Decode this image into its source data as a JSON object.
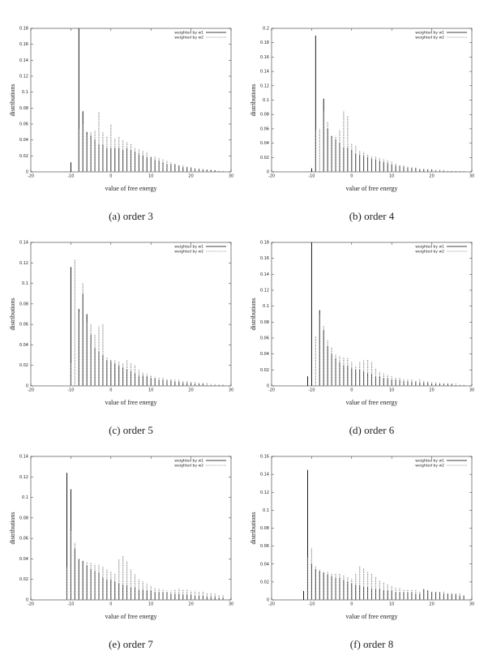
{
  "chart_data": [
    {
      "type": "bar",
      "caption": "(a) order 3",
      "xlabel": "value of free energy",
      "ylabel": "distributions",
      "legend": "upper right",
      "x": [
        -12,
        -11,
        -10,
        -9,
        -8,
        -7,
        -6,
        -5,
        -4,
        -3,
        -2,
        -1,
        0,
        1,
        2,
        3,
        4,
        5,
        6,
        7,
        8,
        9,
        10,
        11,
        12,
        13,
        14,
        15,
        16,
        17,
        18,
        19,
        20,
        21,
        22,
        23,
        24,
        25,
        26,
        27,
        28
      ],
      "xlim": [
        -20,
        30
      ],
      "xticks": [
        -20,
        -10,
        0,
        10,
        20,
        30
      ],
      "ylim": [
        0,
        0.18
      ],
      "yticks": [
        0,
        0.02,
        0.04,
        0.06,
        0.08,
        0.1,
        0.12,
        0.14,
        0.16,
        0.18
      ],
      "series": [
        {
          "name": "weighted by w1",
          "color": "#000000",
          "style": "solid",
          "values": [
            0,
            0,
            0.012,
            0,
            0.18,
            0.076,
            0.05,
            0.046,
            0.04,
            0.035,
            0.034,
            0.03,
            0.03,
            0.03,
            0.03,
            0.028,
            0.03,
            0.028,
            0.025,
            0.022,
            0.02,
            0.018,
            0.018,
            0.015,
            0.014,
            0.012,
            0.01,
            0.01,
            0.009,
            0.008,
            0.006,
            0.006,
            0.005,
            0.004,
            0.004,
            0.003,
            0.003,
            0.002,
            0.002,
            0.001,
            0.001
          ]
        },
        {
          "name": "weighted by w2",
          "color": "#888888",
          "style": "dashed",
          "values": [
            0,
            0,
            0,
            0,
            0.054,
            0.06,
            0.046,
            0.05,
            0.052,
            0.076,
            0.05,
            0.045,
            0.06,
            0.042,
            0.044,
            0.04,
            0.038,
            0.035,
            0.03,
            0.028,
            0.027,
            0.025,
            0.02,
            0.02,
            0.018,
            0.016,
            0.014,
            0.012,
            0.01,
            0.009,
            0.008,
            0.007,
            0.006,
            0.005,
            0.004,
            0.004,
            0.003,
            0.003,
            0.002,
            0.002,
            0.001
          ]
        }
      ]
    },
    {
      "type": "bar",
      "caption": "(b) order 4",
      "xlabel": "value of free energy",
      "ylabel": "distributions",
      "legend": "upper right",
      "x": [
        -12,
        -11,
        -10,
        -9,
        -8,
        -7,
        -6,
        -5,
        -4,
        -3,
        -2,
        -1,
        0,
        1,
        2,
        3,
        4,
        5,
        6,
        7,
        8,
        9,
        10,
        11,
        12,
        13,
        14,
        15,
        16,
        17,
        18,
        19,
        20,
        21,
        22,
        23,
        24,
        25,
        26,
        27,
        28
      ],
      "xlim": [
        -20,
        30
      ],
      "xticks": [
        -20,
        -10,
        0,
        10,
        20,
        30
      ],
      "ylim": [
        0,
        0.2
      ],
      "yticks": [
        0,
        0.02,
        0.04,
        0.06,
        0.08,
        0.1,
        0.12,
        0.14,
        0.16,
        0.18,
        0.2
      ],
      "series": [
        {
          "name": "weighted by w1",
          "color": "#000000",
          "style": "solid",
          "values": [
            0,
            0,
            0.005,
            0.19,
            0,
            0.102,
            0.06,
            0.05,
            0.045,
            0.04,
            0.034,
            0.034,
            0.03,
            0.025,
            0.024,
            0.022,
            0.02,
            0.018,
            0.017,
            0.015,
            0.014,
            0.012,
            0.01,
            0.009,
            0.008,
            0.007,
            0.006,
            0.005,
            0.005,
            0.004,
            0.004,
            0.003,
            0.003,
            0.002,
            0.002,
            0.002,
            0.001,
            0.001,
            0.001,
            0.001,
            0.001
          ]
        },
        {
          "name": "weighted by w2",
          "color": "#888888",
          "style": "dashed",
          "values": [
            0,
            0,
            0,
            0.058,
            0.06,
            0.085,
            0.07,
            0.048,
            0.05,
            0.058,
            0.085,
            0.078,
            0.04,
            0.036,
            0.03,
            0.028,
            0.025,
            0.022,
            0.022,
            0.02,
            0.018,
            0.016,
            0.014,
            0.012,
            0.01,
            0.009,
            0.008,
            0.007,
            0.006,
            0.005,
            0.005,
            0.004,
            0.004,
            0.003,
            0.003,
            0.002,
            0.002,
            0.002,
            0.001,
            0.001,
            0.001
          ]
        }
      ]
    },
    {
      "type": "bar",
      "caption": "(c) order 5",
      "xlabel": "value of free energy",
      "ylabel": "distributions",
      "legend": "upper right",
      "x": [
        -12,
        -11,
        -10,
        -9,
        -8,
        -7,
        -6,
        -5,
        -4,
        -3,
        -2,
        -1,
        0,
        1,
        2,
        3,
        4,
        5,
        6,
        7,
        8,
        9,
        10,
        11,
        12,
        13,
        14,
        15,
        16,
        17,
        18,
        19,
        20,
        21,
        22,
        23,
        24,
        25,
        26,
        27,
        28
      ],
      "xlim": [
        -20,
        30
      ],
      "xticks": [
        -20,
        -10,
        0,
        10,
        20,
        30
      ],
      "ylim": [
        0,
        0.14
      ],
      "yticks": [
        0,
        0.02,
        0.04,
        0.06,
        0.08,
        0.1,
        0.12,
        0.14
      ],
      "series": [
        {
          "name": "weighted by w1",
          "color": "#000000",
          "style": "solid",
          "values": [
            0,
            0,
            0.116,
            0,
            0.075,
            0.09,
            0.07,
            0.05,
            0.037,
            0.034,
            0.03,
            0.025,
            0.024,
            0.022,
            0.02,
            0.018,
            0.016,
            0.014,
            0.012,
            0.01,
            0.01,
            0.009,
            0.008,
            0.007,
            0.006,
            0.006,
            0.005,
            0.005,
            0.004,
            0.004,
            0.003,
            0.003,
            0.003,
            0.002,
            0.002,
            0.002,
            0.001,
            0.001,
            0.001,
            0.001,
            0.001
          ]
        },
        {
          "name": "weighted by w2",
          "color": "#888888",
          "style": "dashed",
          "values": [
            0,
            0,
            0.022,
            0.123,
            0.072,
            0.1,
            0.062,
            0.06,
            0.05,
            0.058,
            0.06,
            0.028,
            0.026,
            0.025,
            0.024,
            0.022,
            0.025,
            0.022,
            0.02,
            0.016,
            0.013,
            0.012,
            0.01,
            0.009,
            0.008,
            0.008,
            0.007,
            0.007,
            0.006,
            0.006,
            0.005,
            0.005,
            0.004,
            0.004,
            0.003,
            0.003,
            0.003,
            0.002,
            0.002,
            0.001,
            0.001
          ]
        }
      ]
    },
    {
      "type": "bar",
      "caption": "(d) order 6",
      "xlabel": "value of free energy",
      "ylabel": "distributions",
      "legend": "upper right",
      "x": [
        -12,
        -11,
        -10,
        -9,
        -8,
        -7,
        -6,
        -5,
        -4,
        -3,
        -2,
        -1,
        0,
        1,
        2,
        3,
        4,
        5,
        6,
        7,
        8,
        9,
        10,
        11,
        12,
        13,
        14,
        15,
        16,
        17,
        18,
        19,
        20,
        21,
        22,
        23,
        24,
        25,
        26,
        27,
        28
      ],
      "xlim": [
        -20,
        30
      ],
      "xticks": [
        -20,
        -10,
        0,
        10,
        20,
        30
      ],
      "ylim": [
        0,
        0.18
      ],
      "yticks": [
        0,
        0.02,
        0.04,
        0.06,
        0.08,
        0.1,
        0.12,
        0.14,
        0.16,
        0.18
      ],
      "series": [
        {
          "name": "weighted by w1",
          "color": "#000000",
          "style": "solid",
          "values": [
            0,
            0.012,
            0.18,
            0,
            0.095,
            0.07,
            0.05,
            0.04,
            0.035,
            0.03,
            0.026,
            0.025,
            0.022,
            0.02,
            0.02,
            0.018,
            0.016,
            0.015,
            0.012,
            0.012,
            0.01,
            0.009,
            0.008,
            0.008,
            0.007,
            0.006,
            0.006,
            0.005,
            0.005,
            0.004,
            0.004,
            0.004,
            0.003,
            0.003,
            0.003,
            0.002,
            0.002,
            0.002,
            0.001,
            0.001,
            0.001
          ]
        },
        {
          "name": "weighted by w2",
          "color": "#888888",
          "style": "dashed",
          "values": [
            0,
            0,
            0,
            0.062,
            0.09,
            0.075,
            0.058,
            0.048,
            0.04,
            0.038,
            0.036,
            0.035,
            0.03,
            0.025,
            0.03,
            0.032,
            0.033,
            0.03,
            0.022,
            0.018,
            0.016,
            0.014,
            0.012,
            0.01,
            0.01,
            0.009,
            0.008,
            0.008,
            0.007,
            0.009,
            0.007,
            0.006,
            0.005,
            0.005,
            0.004,
            0.004,
            0.004,
            0.003,
            0.003,
            0.002,
            0.002
          ]
        }
      ]
    },
    {
      "type": "bar",
      "caption": "(e) order 7",
      "xlabel": "value of free energy",
      "ylabel": "distributions",
      "legend": "upper right",
      "x": [
        -12,
        -11,
        -10,
        -9,
        -8,
        -7,
        -6,
        -5,
        -4,
        -3,
        -2,
        -1,
        0,
        1,
        2,
        3,
        4,
        5,
        6,
        7,
        8,
        9,
        10,
        11,
        12,
        13,
        14,
        15,
        16,
        17,
        18,
        19,
        20,
        21,
        22,
        23,
        24,
        25,
        26,
        27,
        28
      ],
      "xlim": [
        -20,
        30
      ],
      "xticks": [
        -20,
        -10,
        0,
        10,
        20,
        30
      ],
      "ylim": [
        0,
        0.14
      ],
      "yticks": [
        0,
        0.02,
        0.04,
        0.06,
        0.08,
        0.1,
        0.12,
        0.14
      ],
      "series": [
        {
          "name": "weighted by w1",
          "color": "#000000",
          "style": "solid",
          "values": [
            0,
            0.124,
            0.108,
            0.05,
            0.04,
            0.038,
            0.034,
            0.03,
            0.028,
            0.026,
            0.022,
            0.02,
            0.02,
            0.018,
            0.016,
            0.015,
            0.014,
            0.012,
            0.012,
            0.01,
            0.01,
            0.009,
            0.009,
            0.008,
            0.008,
            0.007,
            0.007,
            0.006,
            0.006,
            0.006,
            0.005,
            0.005,
            0.005,
            0.004,
            0.004,
            0.004,
            0.003,
            0.003,
            0.003,
            0.002,
            0.002
          ]
        },
        {
          "name": "weighted by w2",
          "color": "#888888",
          "style": "dashed",
          "values": [
            0,
            0.032,
            0.067,
            0.056,
            0.04,
            0.037,
            0.037,
            0.036,
            0.035,
            0.035,
            0.033,
            0.03,
            0.028,
            0.026,
            0.04,
            0.043,
            0.038,
            0.03,
            0.025,
            0.02,
            0.018,
            0.016,
            0.014,
            0.012,
            0.011,
            0.01,
            0.009,
            0.009,
            0.01,
            0.011,
            0.01,
            0.01,
            0.009,
            0.009,
            0.008,
            0.008,
            0.007,
            0.007,
            0.006,
            0.005,
            0.005
          ]
        }
      ]
    },
    {
      "type": "bar",
      "caption": "(f) order 8",
      "xlabel": "value of free energy",
      "ylabel": "distributions",
      "legend": "upper right",
      "x": [
        -12,
        -11,
        -10,
        -9,
        -8,
        -7,
        -6,
        -5,
        -4,
        -3,
        -2,
        -1,
        0,
        1,
        2,
        3,
        4,
        5,
        6,
        7,
        8,
        9,
        10,
        11,
        12,
        13,
        14,
        15,
        16,
        17,
        18,
        19,
        20,
        21,
        22,
        23,
        24,
        25,
        26,
        27,
        28
      ],
      "xlim": [
        -20,
        30
      ],
      "xticks": [
        -20,
        -10,
        0,
        10,
        20,
        30
      ],
      "ylim": [
        0,
        0.16
      ],
      "yticks": [
        0,
        0.02,
        0.04,
        0.06,
        0.08,
        0.1,
        0.12,
        0.14,
        0.16
      ],
      "series": [
        {
          "name": "weighted by w1",
          "color": "#000000",
          "style": "solid",
          "values": [
            0.01,
            0.145,
            0.04,
            0.034,
            0.032,
            0.03,
            0.028,
            0.026,
            0.025,
            0.024,
            0.022,
            0.02,
            0.018,
            0.017,
            0.016,
            0.015,
            0.014,
            0.013,
            0.012,
            0.012,
            0.011,
            0.01,
            0.01,
            0.009,
            0.009,
            0.008,
            0.008,
            0.008,
            0.007,
            0.007,
            0.012,
            0.01,
            0.009,
            0.008,
            0.008,
            0.007,
            0.007,
            0.006,
            0.006,
            0.005,
            0.005
          ]
        },
        {
          "name": "weighted by w2",
          "color": "#888888",
          "style": "dashed",
          "values": [
            0,
            0.047,
            0.058,
            0.038,
            0.034,
            0.032,
            0.031,
            0.03,
            0.03,
            0.029,
            0.028,
            0.026,
            0.024,
            0.03,
            0.038,
            0.035,
            0.032,
            0.03,
            0.026,
            0.022,
            0.02,
            0.018,
            0.016,
            0.014,
            0.013,
            0.012,
            0.012,
            0.011,
            0.011,
            0.01,
            0.012,
            0.011,
            0.01,
            0.01,
            0.009,
            0.009,
            0.008,
            0.008,
            0.007,
            0.007,
            0.006
          ]
        }
      ]
    }
  ]
}
